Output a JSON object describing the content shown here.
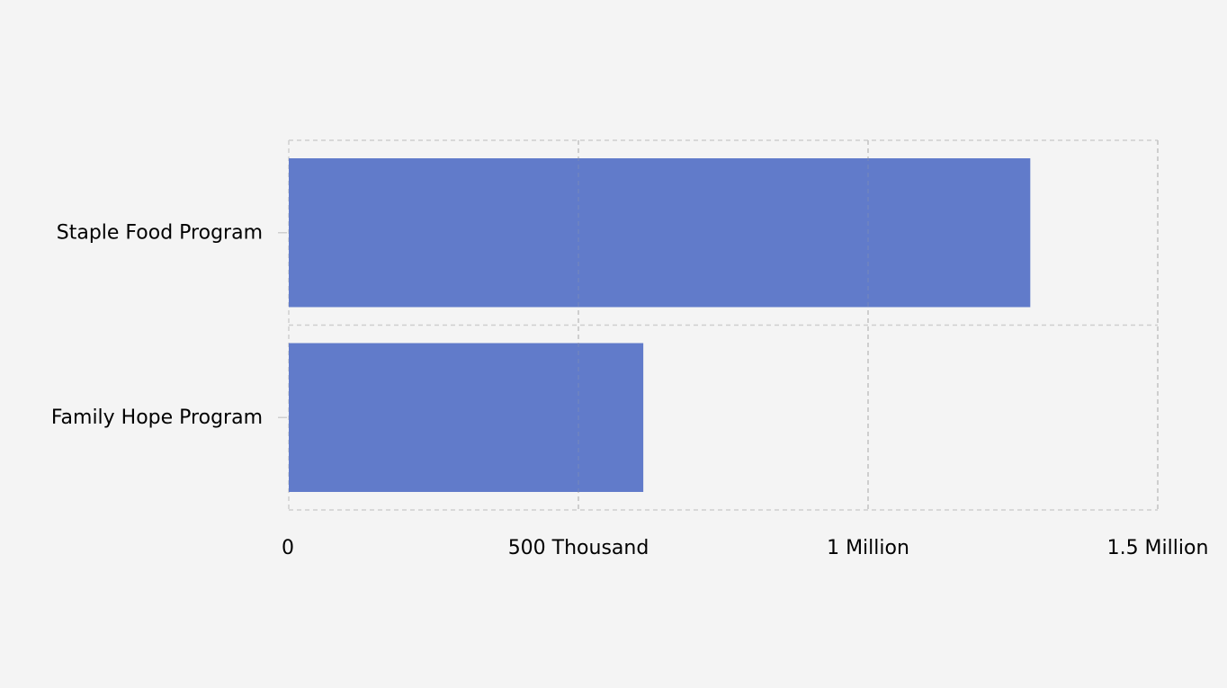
{
  "chart_data": {
    "type": "bar",
    "orientation": "horizontal",
    "categories": [
      "Staple Food Program",
      "Family Hope Program"
    ],
    "values": [
      1280000,
      612000
    ],
    "xlim": [
      0,
      1500000
    ],
    "x_ticks": [
      {
        "value": 0,
        "label": "0"
      },
      {
        "value": 500000,
        "label": "500 Thousand"
      },
      {
        "value": 1000000,
        "label": "1 Million"
      },
      {
        "value": 1500000,
        "label": "1.5 Million"
      }
    ],
    "title": "",
    "xlabel": "",
    "ylabel": "",
    "grid": true,
    "grid_style": "dashed",
    "legend": false,
    "bar_color": "#617bca",
    "background_color": "#f4f4f4"
  }
}
